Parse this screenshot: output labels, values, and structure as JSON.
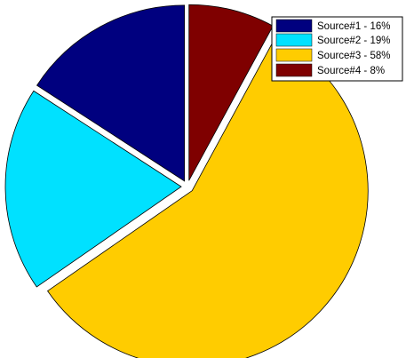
{
  "chart_data": {
    "type": "pie",
    "title": "",
    "categories": [
      "Source#1",
      "Source#2",
      "Source#3",
      "Source#4"
    ],
    "values": [
      16,
      19,
      58,
      8
    ],
    "colors": [
      "#00007f",
      "#00e1ff",
      "#ffcc00",
      "#7f0000"
    ],
    "exploded": true,
    "legend": {
      "placement": "top-right",
      "entries": [
        "Source#1 - 16%",
        "Source#2 - 19%",
        "Source#3 - 58%",
        "Source#4 - 8%"
      ]
    },
    "grid": false
  }
}
